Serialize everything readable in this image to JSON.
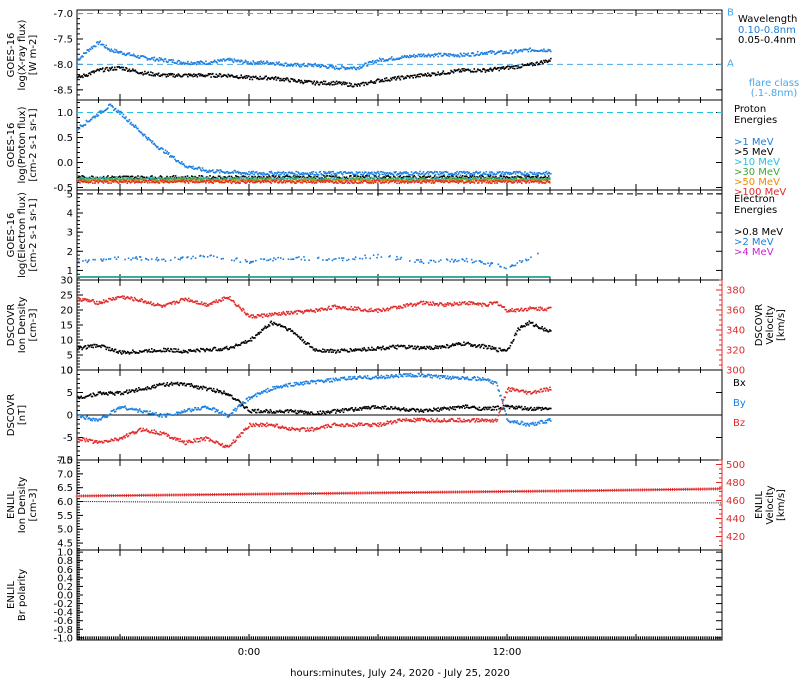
{
  "colors": {
    "black": "#000000",
    "blue": "#1a7fe0",
    "cyan": "#22c4e0",
    "green": "#3aa835",
    "yellow": "#d4c200",
    "orange": "#f08a00",
    "red": "#e02a2a",
    "magenta": "#d020d0",
    "teal": "#1aa090",
    "dash_blue": "#4aa6e8"
  },
  "x_axis": {
    "label": "hours:minutes, July 24, 2020 - July 25, 2020",
    "ticks": [
      {
        "hour": 0,
        "label": "0:00"
      },
      {
        "hour": 12,
        "label": "12:00"
      }
    ],
    "range_hours": [
      -8,
      22
    ],
    "data_end_hour": 14
  },
  "chart_data": [
    {
      "type": "scatter",
      "panel": "xray",
      "ylabel_lines": [
        "GOES-16",
        "log(X-ray flux)",
        "[W m-2]"
      ],
      "ylim": [
        -8.7,
        -6.93
      ],
      "yticks": [
        -8.5,
        -8.0,
        -7.5,
        -7.0
      ],
      "ytick_labels": [
        "-8.5",
        "-8.0",
        "-7.5",
        "-7.0"
      ],
      "threshold_lines": [
        {
          "value": -7.0,
          "label": "B"
        },
        {
          "value": -8.0,
          "label": "A"
        }
      ],
      "legend_title": "Wavelength",
      "legend": [
        {
          "label": "0.10-0.8nm",
          "color_key": "blue"
        },
        {
          "label": "0.05-0.4nm",
          "color_key": "black"
        }
      ],
      "legend_note": [
        "flare class",
        "(.1-.8nm)"
      ],
      "series": [
        {
          "name": "0.10-0.8nm",
          "color_key": "blue",
          "x": [
            -8,
            -7.5,
            -7,
            -6.5,
            -6,
            -5.5,
            -5,
            -4,
            -3,
            -2,
            -1,
            0,
            1,
            2,
            3,
            4,
            5,
            6,
            7,
            8,
            9,
            10,
            11,
            12,
            13,
            14
          ],
          "y": [
            -7.9,
            -7.7,
            -7.55,
            -7.7,
            -7.75,
            -7.8,
            -7.85,
            -7.9,
            -7.95,
            -7.95,
            -7.9,
            -7.95,
            -7.95,
            -8.0,
            -8.0,
            -8.05,
            -8.05,
            -7.9,
            -7.85,
            -7.8,
            -7.8,
            -7.8,
            -7.75,
            -7.75,
            -7.7,
            -7.7
          ]
        },
        {
          "name": "0.05-0.4nm",
          "color_key": "black",
          "x": [
            -8,
            -7,
            -6,
            -5,
            -4,
            -3,
            -2,
            -1,
            0,
            1,
            2,
            3,
            4,
            5,
            6,
            7,
            8,
            9,
            10,
            11,
            12,
            13,
            14
          ],
          "y": [
            -8.25,
            -8.1,
            -8.05,
            -8.15,
            -8.2,
            -8.2,
            -8.2,
            -8.2,
            -8.25,
            -8.25,
            -8.3,
            -8.35,
            -8.35,
            -8.4,
            -8.3,
            -8.25,
            -8.2,
            -8.15,
            -8.1,
            -8.1,
            -8.05,
            -8.0,
            -7.9
          ]
        }
      ]
    },
    {
      "type": "scatter",
      "panel": "proton",
      "ylabel_lines": [
        "GOES-16",
        "log(Proton flux)",
        "[cm-2 s-1 sr-1]"
      ],
      "ylim": [
        -0.55,
        1.25
      ],
      "yticks": [
        -0.5,
        0.0,
        0.5,
        1.0
      ],
      "ytick_labels": [
        "-0.5",
        "0.0",
        "0.5",
        "1.0"
      ],
      "threshold_lines": [
        {
          "value": 1.0
        }
      ],
      "legend_title": "Proton Energies",
      "legend": [
        {
          "label": ">1 MeV",
          "color_key": "blue"
        },
        {
          "label": ">5 MeV",
          "color_key": "black"
        },
        {
          "label": ">10 MeV",
          "color_key": "cyan"
        },
        {
          "label": ">30 MeV",
          "color_key": "green"
        },
        {
          "label": ">50 MeV",
          "color_key": "orange"
        },
        {
          "label": ">100 MeV",
          "color_key": "red"
        }
      ],
      "series": [
        {
          "name": ">1 MeV",
          "color_key": "blue",
          "x": [
            -8,
            -7.5,
            -7,
            -6.5,
            -6,
            -5.5,
            -5,
            -4.5,
            -4,
            -3.5,
            -3,
            -2,
            0,
            4,
            8,
            12,
            14
          ],
          "y": [
            0.7,
            0.85,
            1.0,
            1.15,
            1.0,
            0.8,
            0.6,
            0.4,
            0.25,
            0.1,
            -0.05,
            -0.15,
            -0.2,
            -0.2,
            -0.2,
            -0.2,
            -0.2
          ]
        },
        {
          "name": ">5 MeV",
          "color_key": "black",
          "x": [
            -8,
            0,
            14
          ],
          "y": [
            -0.28,
            -0.28,
            -0.28
          ]
        },
        {
          "name": ">10 MeV",
          "color_key": "cyan",
          "x": [
            -8,
            0,
            14
          ],
          "y": [
            -0.31,
            -0.31,
            -0.31
          ]
        },
        {
          "name": ">30 MeV",
          "color_key": "green",
          "x": [
            -8,
            0,
            14
          ],
          "y": [
            -0.33,
            -0.33,
            -0.33
          ]
        },
        {
          "name": ">50 MeV",
          "color_key": "orange",
          "x": [
            -8,
            0,
            14
          ],
          "y": [
            -0.35,
            -0.35,
            -0.35
          ]
        },
        {
          "name": ">100 MeV",
          "color_key": "red",
          "x": [
            -8,
            0,
            14
          ],
          "y": [
            -0.37,
            -0.37,
            -0.37
          ]
        }
      ]
    },
    {
      "type": "scatter",
      "panel": "electron",
      "ylabel_lines": [
        "GOES-16",
        "log(Electron flux)",
        "[cm-2 s-1 sr-1]"
      ],
      "ylim": [
        0.5,
        5.2
      ],
      "yticks": [
        1,
        2,
        3,
        4,
        5
      ],
      "ytick_labels": [
        "1",
        "2",
        "3",
        "4",
        "5"
      ],
      "threshold_lines": [
        {
          "value": 5.0
        }
      ],
      "legend_title": "Electron Energies",
      "legend": [
        {
          "label": ">0.8 MeV",
          "color_key": "black"
        },
        {
          "label": ">2 MeV",
          "color_key": "blue"
        },
        {
          "label": ">4 MeV",
          "color_key": "magenta"
        }
      ],
      "series": [
        {
          "name": ">2 MeV",
          "color_key": "blue",
          "x": [
            -8,
            -6,
            -4,
            -2,
            0,
            2,
            4,
            6,
            8,
            10,
            12,
            13.5
          ],
          "y": [
            1.5,
            1.7,
            1.6,
            1.8,
            1.5,
            1.7,
            1.6,
            1.8,
            1.5,
            1.6,
            1.2,
            1.9
          ]
        },
        {
          "name": ">4 MeV",
          "color_key": "teal",
          "x": [
            -8,
            14
          ],
          "y": [
            0.7,
            0.7
          ]
        }
      ]
    },
    {
      "type": "scatter",
      "panel": "dscovr_density_speed",
      "ylabel_lines": [
        "DSCOVR",
        "Ion Density",
        "[cm-3]"
      ],
      "ylim": [
        0,
        30
      ],
      "yticks": [
        0,
        5,
        10,
        15,
        20,
        25,
        30
      ],
      "ytick_labels": [
        "0",
        "5",
        "10",
        "15",
        "20",
        "25",
        "30"
      ],
      "y2label_lines": [
        "DSCOVR",
        "Velocity",
        "[km/s]"
      ],
      "y2lim": [
        300,
        390
      ],
      "y2ticks": [
        300,
        320,
        340,
        360,
        380
      ],
      "y2tick_labels": [
        "300",
        "320",
        "340",
        "360",
        "380"
      ],
      "series": [
        {
          "name": "density",
          "axis": "left",
          "color_key": "black",
          "x": [
            -8,
            -7,
            -6,
            -5,
            -4,
            -3,
            -2,
            -1,
            0,
            0.5,
            1,
            1.5,
            2,
            2.5,
            3,
            4,
            5,
            6,
            7,
            8,
            9,
            10,
            11,
            11.5,
            12,
            12.5,
            13,
            14
          ],
          "y": [
            7.5,
            8.5,
            6,
            6.5,
            7,
            6.5,
            7,
            7.5,
            10,
            13,
            16,
            15,
            13,
            10,
            7,
            6.5,
            7,
            7.5,
            8,
            7.5,
            8,
            9,
            8,
            7,
            7,
            14,
            16,
            13
          ]
        },
        {
          "name": "velocity",
          "axis": "right",
          "color_key": "red",
          "x": [
            -8,
            -7,
            -6,
            -5,
            -4,
            -3,
            -2,
            -1,
            0,
            1,
            2,
            3,
            4,
            5,
            6,
            7,
            8,
            9,
            10,
            11,
            11.5,
            12,
            13,
            14
          ],
          "y": [
            372,
            368,
            374,
            370,
            364,
            372,
            366,
            374,
            354,
            356,
            358,
            360,
            364,
            362,
            360,
            364,
            368,
            366,
            368,
            366,
            368,
            360,
            362,
            362
          ]
        }
      ]
    },
    {
      "type": "scatter",
      "panel": "dscovr_mag",
      "ylabel_lines": [
        "DSCOVR",
        "[nT]"
      ],
      "ylim": [
        -10,
        10
      ],
      "yticks": [
        -10,
        -5,
        0,
        5,
        10
      ],
      "ytick_labels": [
        "-10",
        "-5",
        "0",
        "5",
        "10"
      ],
      "zero_line": true,
      "legend": [
        {
          "label": "Bx",
          "color_key": "black"
        },
        {
          "label": "By",
          "color_key": "blue"
        },
        {
          "label": "Bz",
          "color_key": "red"
        }
      ],
      "series": [
        {
          "name": "Bx",
          "color_key": "black",
          "x": [
            -8,
            -7,
            -6,
            -5,
            -4,
            -3,
            -2,
            -1,
            0,
            1,
            2,
            3,
            4,
            5,
            6,
            7,
            8,
            9,
            10,
            11,
            12,
            13,
            14
          ],
          "y": [
            4,
            5,
            5,
            6,
            7,
            7,
            6,
            5,
            1,
            1,
            1,
            0.5,
            1,
            1.5,
            2,
            1.5,
            1,
            1.5,
            2,
            1.5,
            2,
            1.5,
            1.5
          ]
        },
        {
          "name": "By",
          "color_key": "blue",
          "x": [
            -8,
            -7,
            -6,
            -5,
            -4,
            -3,
            -2,
            -1,
            0,
            1,
            2,
            3,
            4,
            5,
            6,
            7,
            8,
            9,
            10,
            11,
            11.5,
            12,
            13,
            14
          ],
          "y": [
            0,
            -1,
            2,
            1,
            0,
            1,
            2,
            0,
            4,
            6,
            7,
            7.5,
            8,
            8.5,
            8.5,
            9,
            9,
            8.5,
            8.5,
            8,
            7,
            -1,
            -2,
            -1
          ]
        },
        {
          "name": "Bz",
          "color_key": "red",
          "x": [
            -8,
            -7,
            -6,
            -5,
            -4,
            -3,
            -2,
            -1,
            0,
            1,
            2,
            3,
            4,
            5,
            6,
            7,
            8,
            9,
            10,
            11,
            11.5,
            12,
            13,
            14
          ],
          "y": [
            -5,
            -6,
            -5,
            -3,
            -4,
            -6,
            -5,
            -7,
            -2,
            -2,
            -3,
            -3,
            -2,
            -2,
            -2,
            -1,
            -1,
            -1,
            -1,
            -1,
            -1,
            6,
            5,
            6
          ]
        }
      ]
    },
    {
      "type": "scatter",
      "panel": "enlil_density_speed",
      "ylabel_lines": [
        "ENLIL",
        "Ion Density",
        "[cm-3]"
      ],
      "ylim": [
        4.25,
        7.5
      ],
      "yticks": [
        4.5,
        5.0,
        5.5,
        6.0,
        6.5,
        7.0,
        7.5
      ],
      "ytick_labels": [
        "4.5",
        "5.0",
        "5.5",
        "6.0",
        "6.5",
        "7.0",
        "7.5"
      ],
      "y2label_lines": [
        "ENLIL",
        "Velocity",
        "[km/s]"
      ],
      "y2lim": [
        405,
        505
      ],
      "y2ticks": [
        420,
        440,
        460,
        480,
        500
      ],
      "y2tick_labels": [
        "420",
        "440",
        "460",
        "480",
        "500"
      ],
      "series": [
        {
          "name": "density",
          "axis": "left",
          "color_key": "black",
          "x": [
            -8,
            -4,
            0,
            4,
            8,
            12,
            16,
            22
          ],
          "y": [
            6.02,
            6.0,
            5.98,
            5.97,
            5.97,
            5.97,
            5.97,
            5.97
          ]
        },
        {
          "name": "velocity",
          "axis": "right",
          "color_key": "red",
          "x": [
            -8,
            -4,
            0,
            4,
            8,
            12,
            16,
            22
          ],
          "y": [
            465,
            466,
            467,
            468,
            469,
            470,
            471,
            473
          ]
        }
      ]
    },
    {
      "type": "scatter",
      "panel": "enlil_polarity",
      "ylabel_lines": [
        "ENLIL",
        "Br polarity"
      ],
      "ylim": [
        -1.05,
        1.05
      ],
      "yticks": [
        -1.0,
        -0.8,
        -0.6,
        -0.4,
        -0.2,
        0.0,
        0.2,
        0.4,
        0.6,
        0.8,
        1.0
      ],
      "ytick_labels": [
        "-1.0",
        "-0.8",
        "-0.6",
        "-0.4",
        "-0.2",
        "0.0",
        "0.2",
        "0.4",
        "0.6",
        "0.8",
        "1.0"
      ],
      "series": [
        {
          "name": "polarity",
          "color_key": "black",
          "x": [
            -8,
            22
          ],
          "y": [
            -1.0,
            -1.0
          ]
        }
      ]
    }
  ]
}
